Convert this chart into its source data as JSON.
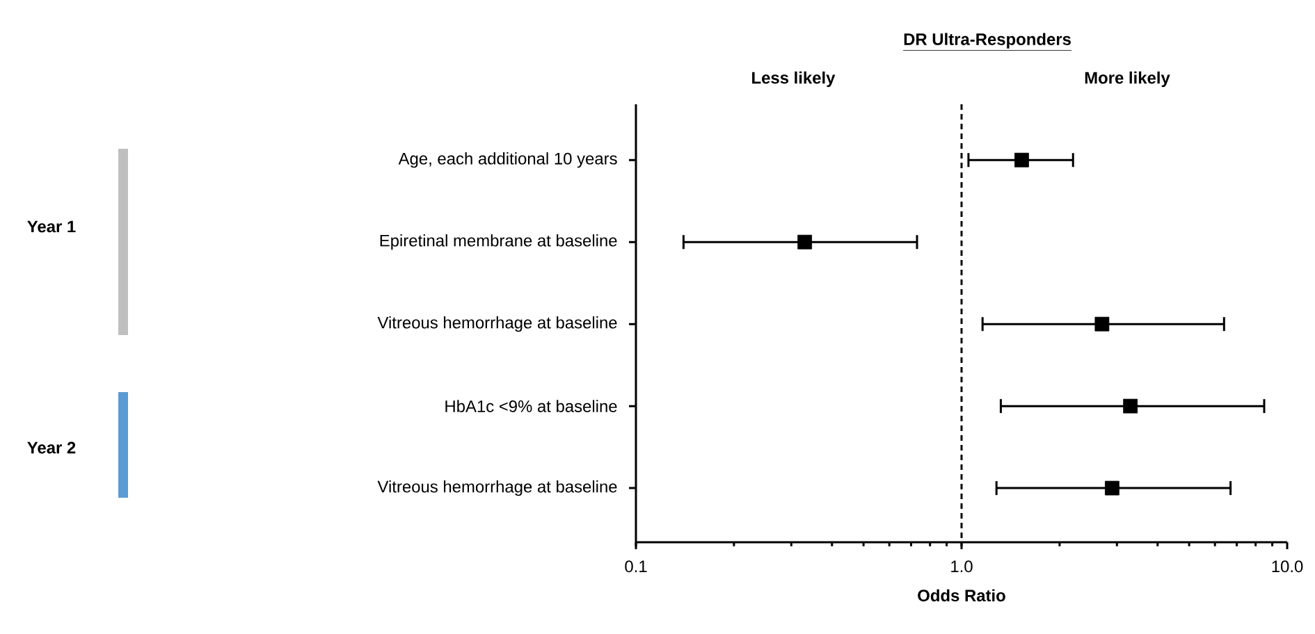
{
  "chart_data": {
    "type": "scatter",
    "orientation": "horizontal",
    "title": "DR Ultra-Responders",
    "xlabel": "Odds Ratio",
    "categories": [
      "Age, each additional 10 years",
      "Epiretinal membrane at baseline",
      "Vitreous hemorrhage at baseline",
      "HbA1c <9% at baseline",
      "Vitreous hemorrhage at baseline"
    ],
    "values": [
      1.53,
      0.33,
      2.7,
      3.3,
      2.9
    ],
    "errors": [
      [
        1.05,
        2.2
      ],
      [
        0.14,
        0.73
      ],
      [
        1.16,
        6.4
      ],
      [
        1.32,
        8.5
      ],
      [
        1.28,
        6.7
      ]
    ],
    "color": "#000000",
    "marker": "square",
    "log": "x",
    "xlim": [
      0.1,
      10
    ],
    "xticks": [
      {
        "value": 0.1,
        "label": "0.1"
      },
      {
        "value": 1,
        "label": "1.0"
      },
      {
        "value": 10,
        "label": "10.0"
      }
    ],
    "ref_lines": [
      {
        "axis": "x",
        "value": 1,
        "line_style": "dashed"
      }
    ],
    "annotations": [
      "Less likely",
      "More likely",
      "Year 1",
      "Year 2"
    ],
    "grid": false
  }
}
